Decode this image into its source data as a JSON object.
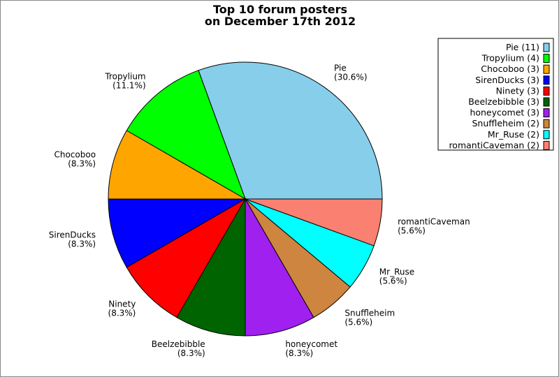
{
  "chart_data": {
    "type": "pie",
    "title": [
      "Top 10 forum posters",
      "on December 17th 2012"
    ],
    "start_angle_deg": 0,
    "direction": "counterclockwise",
    "legend_position": "top-right",
    "slices": [
      {
        "name": "Pie",
        "value": 11,
        "percent_label": "(30.6%)",
        "legend": "Pie (11)",
        "color": "#87CEEB"
      },
      {
        "name": "Tropylium",
        "value": 4,
        "percent_label": "(11.1%)",
        "legend": "Tropylium (4)",
        "color": "#00FF00"
      },
      {
        "name": "Chocoboo",
        "value": 3,
        "percent_label": "(8.3%)",
        "legend": "Chocoboo (3)",
        "color": "#FFA500"
      },
      {
        "name": "SirenDucks",
        "value": 3,
        "percent_label": "(8.3%)",
        "legend": "SirenDucks (3)",
        "color": "#0000FF"
      },
      {
        "name": "Ninety",
        "value": 3,
        "percent_label": "(8.3%)",
        "legend": "Ninety (3)",
        "color": "#FF0000"
      },
      {
        "name": "Beelzebibble",
        "value": 3,
        "percent_label": "(8.3%)",
        "legend": "Beelzebibble (3)",
        "color": "#006400"
      },
      {
        "name": "honeycomet",
        "value": 3,
        "percent_label": "(8.3%)",
        "legend": "honeycomet (3)",
        "color": "#A020F0"
      },
      {
        "name": "Snuffleheim",
        "value": 2,
        "percent_label": "(5.6%)",
        "legend": "Snuffleheim (2)",
        "color": "#CD853F"
      },
      {
        "name": "Mr_Ruse",
        "value": 2,
        "percent_label": "(5.6%)",
        "legend": "Mr_Ruse (2)",
        "color": "#00FFFF"
      },
      {
        "name": "romantiCaveman",
        "value": 2,
        "percent_label": "(5.6%)",
        "legend": "romantiCaveman (2)",
        "color": "#FA8072"
      }
    ]
  }
}
